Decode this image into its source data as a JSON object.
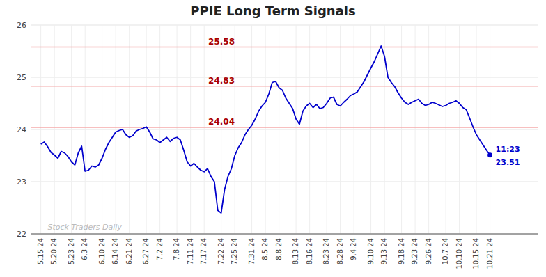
{
  "chart_data": {
    "type": "line",
    "title": "PPIE Long Term Signals",
    "color": "#0000CC",
    "grid": true,
    "ylim": [
      22,
      26
    ],
    "yticks": [
      22,
      23,
      24,
      25,
      26
    ],
    "categories": [
      "5.15.24",
      null,
      null,
      null,
      "5.20.24",
      null,
      null,
      null,
      null,
      "5.23.24",
      null,
      null,
      null,
      "6.3.24",
      null,
      null,
      null,
      null,
      "6.10.24",
      null,
      null,
      null,
      "6.14.24",
      null,
      null,
      null,
      "6.21.24",
      null,
      null,
      null,
      null,
      "6.27.24",
      null,
      null,
      null,
      "7.2.24",
      null,
      null,
      null,
      null,
      "7.8.24",
      null,
      null,
      null,
      "7.11.24",
      null,
      null,
      null,
      "7.17.24",
      null,
      null,
      null,
      null,
      "7.22.24",
      null,
      null,
      null,
      "7.25.24",
      null,
      null,
      null,
      null,
      "7.31.24",
      null,
      null,
      null,
      "8.5.24",
      null,
      null,
      null,
      "8.8.24",
      null,
      null,
      null,
      null,
      "8.13.24",
      null,
      null,
      null,
      "8.16.24",
      null,
      null,
      null,
      null,
      "8.23.24",
      null,
      null,
      null,
      "8.28.24",
      null,
      null,
      null,
      "9.4.24",
      null,
      null,
      null,
      null,
      "9.10.24",
      null,
      null,
      null,
      "9.13.24",
      null,
      null,
      null,
      null,
      "9.18.24",
      null,
      null,
      null,
      "9.23.24",
      null,
      null,
      null,
      "9.26.24",
      null,
      null,
      null,
      null,
      "10.7.24",
      null,
      null,
      null,
      "10.10.24",
      null,
      null,
      null,
      null,
      "10.15.24",
      null,
      null,
      null,
      "10.21.24"
    ],
    "values": [
      23.72,
      23.76,
      23.67,
      23.56,
      23.51,
      23.45,
      23.58,
      23.55,
      23.48,
      23.38,
      23.32,
      23.55,
      23.68,
      23.2,
      23.22,
      23.3,
      23.28,
      23.32,
      23.45,
      23.62,
      23.75,
      23.85,
      23.95,
      23.98,
      24.0,
      23.9,
      23.85,
      23.88,
      23.97,
      24.0,
      24.02,
      24.05,
      23.95,
      23.82,
      23.8,
      23.75,
      23.8,
      23.85,
      23.77,
      23.83,
      23.85,
      23.8,
      23.6,
      23.38,
      23.3,
      23.35,
      23.28,
      23.22,
      23.19,
      23.25,
      23.1,
      23.0,
      22.45,
      22.4,
      22.85,
      23.1,
      23.25,
      23.5,
      23.65,
      23.75,
      23.9,
      24.0,
      24.08,
      24.2,
      24.35,
      24.45,
      24.52,
      24.68,
      24.9,
      24.92,
      24.8,
      24.75,
      24.6,
      24.5,
      24.4,
      24.2,
      24.1,
      24.35,
      24.45,
      24.5,
      24.42,
      24.48,
      24.4,
      24.42,
      24.5,
      24.6,
      24.62,
      24.48,
      24.45,
      24.52,
      24.58,
      24.65,
      24.68,
      24.72,
      24.82,
      24.92,
      25.05,
      25.18,
      25.3,
      25.45,
      25.6,
      25.4,
      25.0,
      24.9,
      24.82,
      24.7,
      24.6,
      24.52,
      24.48,
      24.52,
      24.55,
      24.58,
      24.5,
      24.46,
      24.48,
      24.52,
      24.5,
      24.47,
      24.44,
      24.46,
      24.5,
      24.52,
      24.55,
      24.5,
      24.42,
      24.38,
      24.22,
      24.05,
      23.9,
      23.8,
      23.7,
      23.6,
      23.51
    ],
    "hlines": [
      {
        "value": 25.58,
        "label": "25.58",
        "color": "#f4aaaa",
        "label_color": "#aa0000"
      },
      {
        "value": 24.83,
        "label": "24.83",
        "color": "#f4aaaa",
        "label_color": "#aa0000"
      },
      {
        "value": 24.04,
        "label": "24.04",
        "color": "#f4aaaa",
        "label_color": "#aa0000"
      }
    ],
    "last_time_label": "11:23",
    "last_value_label": "23.51",
    "watermark": "Stock Traders Daily"
  }
}
